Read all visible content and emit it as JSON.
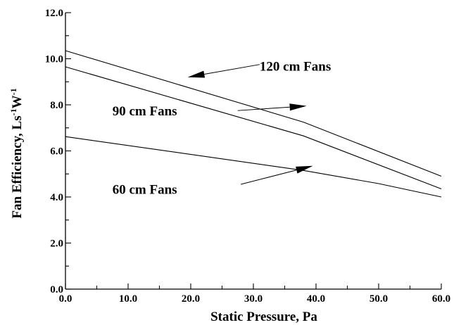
{
  "chart_data": {
    "type": "line",
    "xlabel": "Static Pressure, Pa",
    "ylabel": {
      "main": "Fan Efficiency, Ls",
      "sup1": "-1",
      "mid": "W",
      "sup2": "-1"
    },
    "xlim": [
      0,
      60
    ],
    "ylim": [
      0,
      12
    ],
    "x_ticks": [
      "0.0",
      "10.0",
      "20.0",
      "30.0",
      "40.0",
      "50.0",
      "60.0"
    ],
    "y_ticks": [
      "0.0",
      "2.0",
      "4.0",
      "6.0",
      "8.0",
      "10.0",
      "12.0"
    ],
    "grid": false,
    "series": [
      {
        "name": "120 cm Fans",
        "x": [
          0,
          38,
          60
        ],
        "y": [
          10.35,
          7.25,
          4.9
        ]
      },
      {
        "name": "90 cm Fans",
        "x": [
          0,
          38,
          60
        ],
        "y": [
          9.65,
          6.65,
          4.35
        ]
      },
      {
        "name": "60 cm Fans",
        "x": [
          0,
          38,
          50,
          60
        ],
        "y": [
          6.62,
          5.15,
          4.58,
          4.0
        ]
      }
    ],
    "annotations": [
      {
        "text": "120 cm Fans",
        "text_x": 31,
        "text_y": 9.7,
        "arrow_from": [
          31,
          9.75
        ],
        "arrow_to": [
          19.5,
          9.2
        ]
      },
      {
        "text": "90 cm Fans",
        "text_x": 7.5,
        "text_y": 7.75,
        "arrow_from": [
          27.5,
          7.75
        ],
        "arrow_to": [
          38.5,
          7.95
        ]
      },
      {
        "text": "60 cm Fans",
        "text_x": 7.5,
        "text_y": 4.35,
        "arrow_from": [
          28,
          4.55
        ],
        "arrow_to": [
          39.5,
          5.35
        ]
      }
    ]
  }
}
